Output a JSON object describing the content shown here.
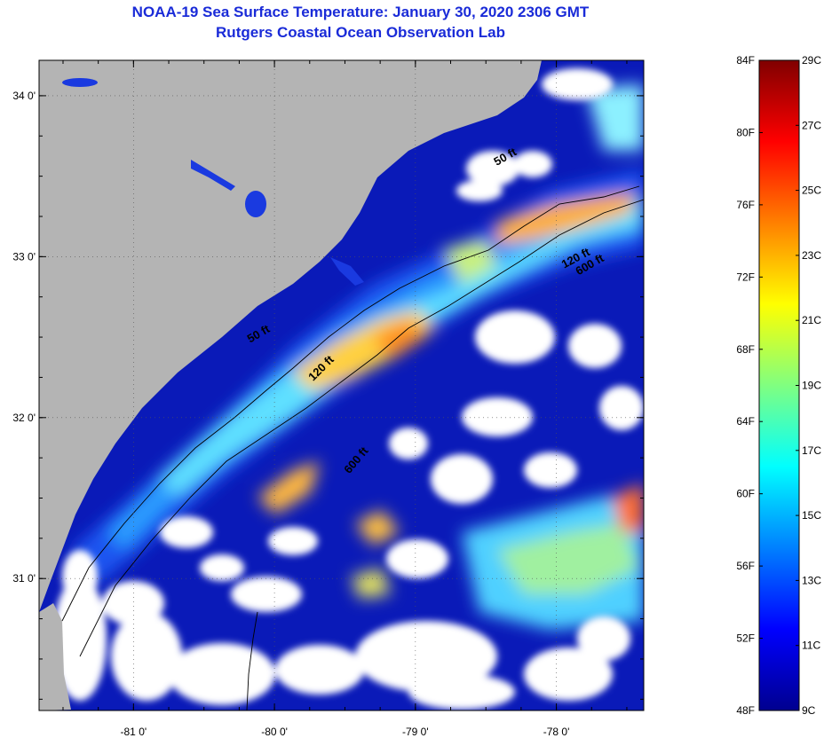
{
  "title": "NOAA-19 Sea Surface Temperature:  January 30, 2020 2306 GMT",
  "subtitle": "Rutgers Coastal Ocean Observation Lab",
  "map": {
    "lon_range": [
      -81.67,
      -77.38
    ],
    "lat_range": [
      30.18,
      34.22
    ],
    "lon_ticks": [
      {
        "value": -81,
        "label": "-81 0'"
      },
      {
        "value": -80,
        "label": "-80 0'"
      },
      {
        "value": -79,
        "label": "-79 0'"
      },
      {
        "value": -78,
        "label": "-78 0'"
      }
    ],
    "lat_ticks": [
      {
        "value": 34,
        "label": "34 0'"
      },
      {
        "value": 33,
        "label": "33 0'"
      },
      {
        "value": 32,
        "label": "32 0'"
      },
      {
        "value": 31,
        "label": "31 0'"
      }
    ],
    "contour_labels": [
      {
        "text": "50 ft",
        "lon": -78.35,
        "lat": 33.6
      },
      {
        "text": "120 ft",
        "lon": -77.85,
        "lat": 32.97
      },
      {
        "text": "600 ft",
        "lon": -77.75,
        "lat": 32.93
      },
      {
        "text": "50 ft",
        "lon": -80.1,
        "lat": 32.5
      },
      {
        "text": "120 ft",
        "lon": -79.65,
        "lat": 32.29
      },
      {
        "text": "600 ft",
        "lon": -79.4,
        "lat": 31.72
      }
    ],
    "land_color": "#b4b4b4",
    "no_data_color": "#ffffff"
  },
  "colorbar": {
    "min_f": 48,
    "max_f": 84,
    "min_c": 9,
    "max_c": 29,
    "fahrenheit_labels": [
      "84F",
      "80F",
      "76F",
      "72F",
      "68F",
      "64F",
      "60F",
      "56F",
      "52F",
      "48F"
    ],
    "celsius_labels": [
      "29C",
      "27C",
      "25C",
      "23C",
      "21C",
      "19C",
      "17C",
      "15C",
      "13C",
      "11C",
      "9C"
    ],
    "colors": [
      "#00008f",
      "#0000ff",
      "#0080ff",
      "#00ffff",
      "#80ff80",
      "#ffff00",
      "#ff8000",
      "#ff0000",
      "#800000"
    ]
  }
}
